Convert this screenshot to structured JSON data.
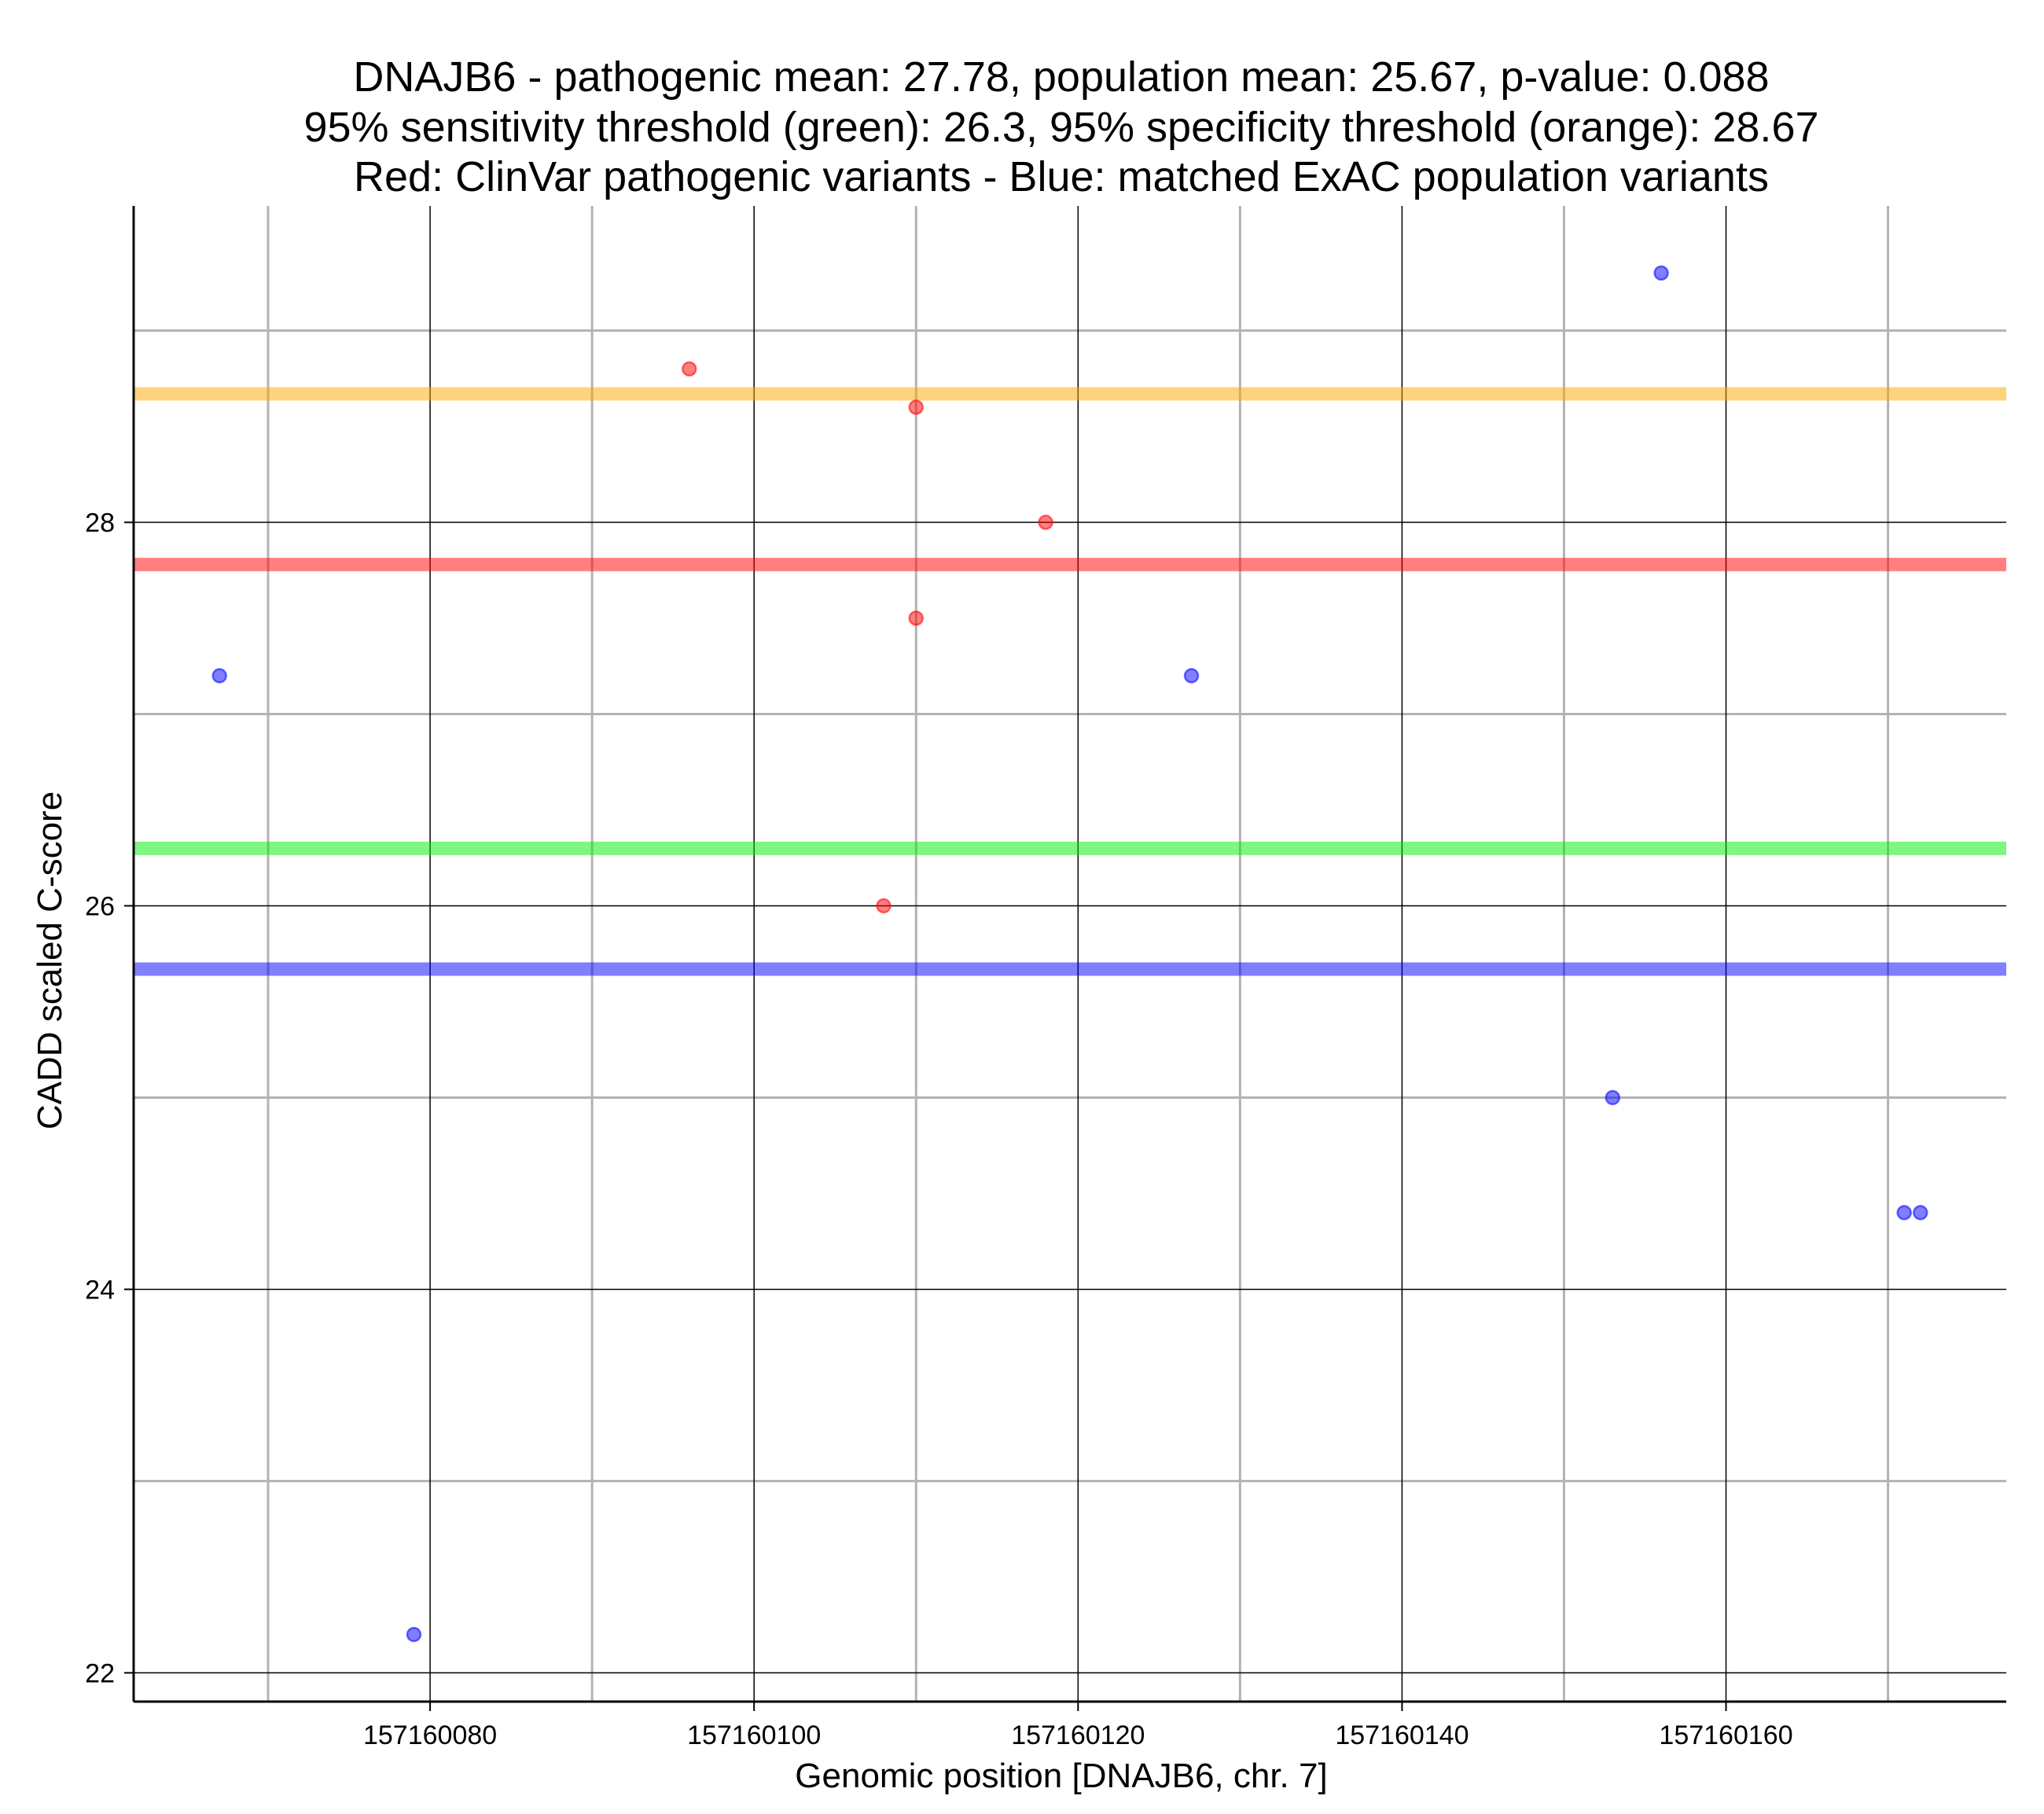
{
  "chart_data": {
    "type": "scatter",
    "title_lines": [
      "DNAJB6 - pathogenic mean: 27.78, population mean: 25.67, p-value: 0.088",
      "95% sensitivity threshold (green): 26.3, 95% specificity threshold (orange): 28.67",
      "Red: ClinVar pathogenic variants - Blue: matched ExAC population variants"
    ],
    "xlabel": "Genomic position [DNAJB6, chr. 7]",
    "ylabel": "CADD scaled C-score",
    "xlim": [
      157160061.7,
      157160177.3
    ],
    "ylim": [
      21.85,
      29.65
    ],
    "x_major_ticks": [
      157160080,
      157160100,
      157160120,
      157160140,
      157160160
    ],
    "x_minor_ticks": [
      157160070,
      157160090,
      157160110,
      157160130,
      157160150,
      157160170
    ],
    "y_major_ticks": [
      22,
      24,
      26,
      28
    ],
    "y_minor_ticks": [
      23,
      25,
      27,
      29
    ],
    "x_tick_labels": [
      "157160080",
      "157160100",
      "157160120",
      "157160140",
      "157160160"
    ],
    "y_tick_labels": [
      "22",
      "24",
      "26",
      "28"
    ],
    "grid": true,
    "colors": {
      "pathogenic": "#ff0000",
      "population": "#0000ff",
      "sensitivity": "#00ee00",
      "specificity": "#ffa500"
    },
    "hlines": [
      {
        "name": "specificity threshold (orange)",
        "y": 28.67,
        "color": "#ffa500"
      },
      {
        "name": "pathogenic mean",
        "y": 27.78,
        "color": "#ff0000"
      },
      {
        "name": "sensitivity threshold (green)",
        "y": 26.3,
        "color": "#00ee00"
      },
      {
        "name": "population mean",
        "y": 25.67,
        "color": "#0000ff"
      }
    ],
    "series": [
      {
        "name": "ClinVar pathogenic variants",
        "color": "#ff0000",
        "x": [
          157160096,
          157160110,
          157160118,
          157160110,
          157160108
        ],
        "y": [
          28.8,
          28.6,
          28.0,
          27.5,
          26.0
        ]
      },
      {
        "name": "matched ExAC population variants",
        "color": "#0000ff",
        "x": [
          157160067,
          157160079,
          157160127,
          157160153,
          157160156,
          157160171,
          157160172
        ],
        "y": [
          27.2,
          22.2,
          27.2,
          25.0,
          29.3,
          24.4,
          24.4
        ]
      }
    ]
  }
}
